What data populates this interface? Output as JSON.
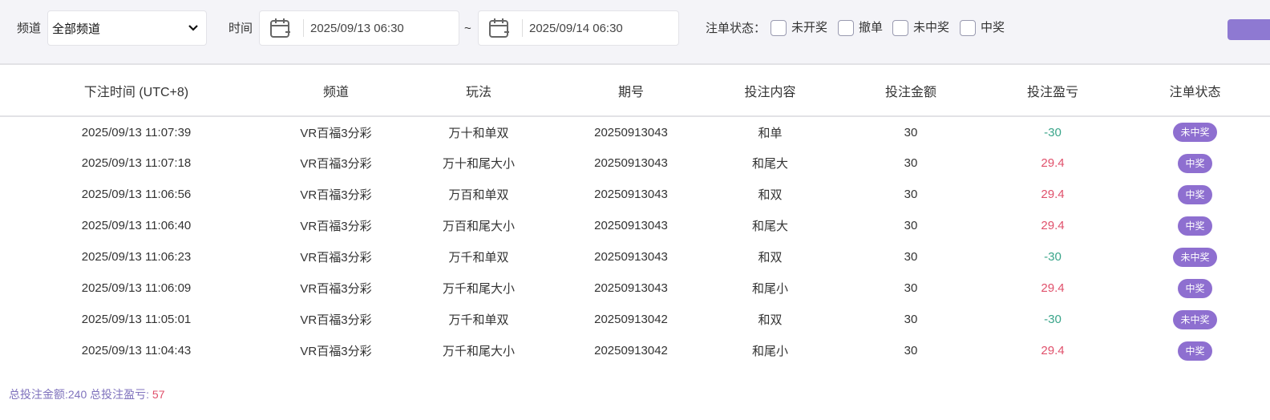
{
  "filter": {
    "channel_label": "频道",
    "channel_value": "全部频道",
    "time_label": "时间",
    "start": "2025/09/13 06:30",
    "tilde": "~",
    "end": "2025/09/14 06:30",
    "status_label": "注单状态：",
    "statuses": [
      "未开奖",
      "撤单",
      "未中奖",
      "中奖"
    ]
  },
  "colors": {
    "accent": "#8e6fd0",
    "loss": "#3aa58a",
    "win": "#e0506b"
  },
  "table": {
    "headers": [
      "下注时间 (UTC+8)",
      "频道",
      "玩法",
      "期号",
      "投注内容",
      "投注金额",
      "投注盈亏",
      "注单状态"
    ],
    "rows": [
      [
        "2025/09/13 11:07:39",
        "VR百福3分彩",
        "万十和单双",
        "20250913043",
        "和单",
        "30",
        "-30",
        "未中奖"
      ],
      [
        "2025/09/13 11:07:18",
        "VR百福3分彩",
        "万十和尾大小",
        "20250913043",
        "和尾大",
        "30",
        "29.4",
        "中奖"
      ],
      [
        "2025/09/13 11:06:56",
        "VR百福3分彩",
        "万百和单双",
        "20250913043",
        "和双",
        "30",
        "29.4",
        "中奖"
      ],
      [
        "2025/09/13 11:06:40",
        "VR百福3分彩",
        "万百和尾大小",
        "20250913043",
        "和尾大",
        "30",
        "29.4",
        "中奖"
      ],
      [
        "2025/09/13 11:06:23",
        "VR百福3分彩",
        "万千和单双",
        "20250913043",
        "和双",
        "30",
        "-30",
        "未中奖"
      ],
      [
        "2025/09/13 11:06:09",
        "VR百福3分彩",
        "万千和尾大小",
        "20250913043",
        "和尾小",
        "30",
        "29.4",
        "中奖"
      ],
      [
        "2025/09/13 11:05:01",
        "VR百福3分彩",
        "万千和单双",
        "20250913042",
        "和双",
        "30",
        "-30",
        "未中奖"
      ],
      [
        "2025/09/13 11:04:43",
        "VR百福3分彩",
        "万千和尾大小",
        "20250913042",
        "和尾小",
        "30",
        "29.4",
        "中奖"
      ]
    ]
  },
  "summary": {
    "total_bet": "总投注金额:240",
    "total_pl_label": "总投注盈亏:",
    "total_pl": "57"
  }
}
